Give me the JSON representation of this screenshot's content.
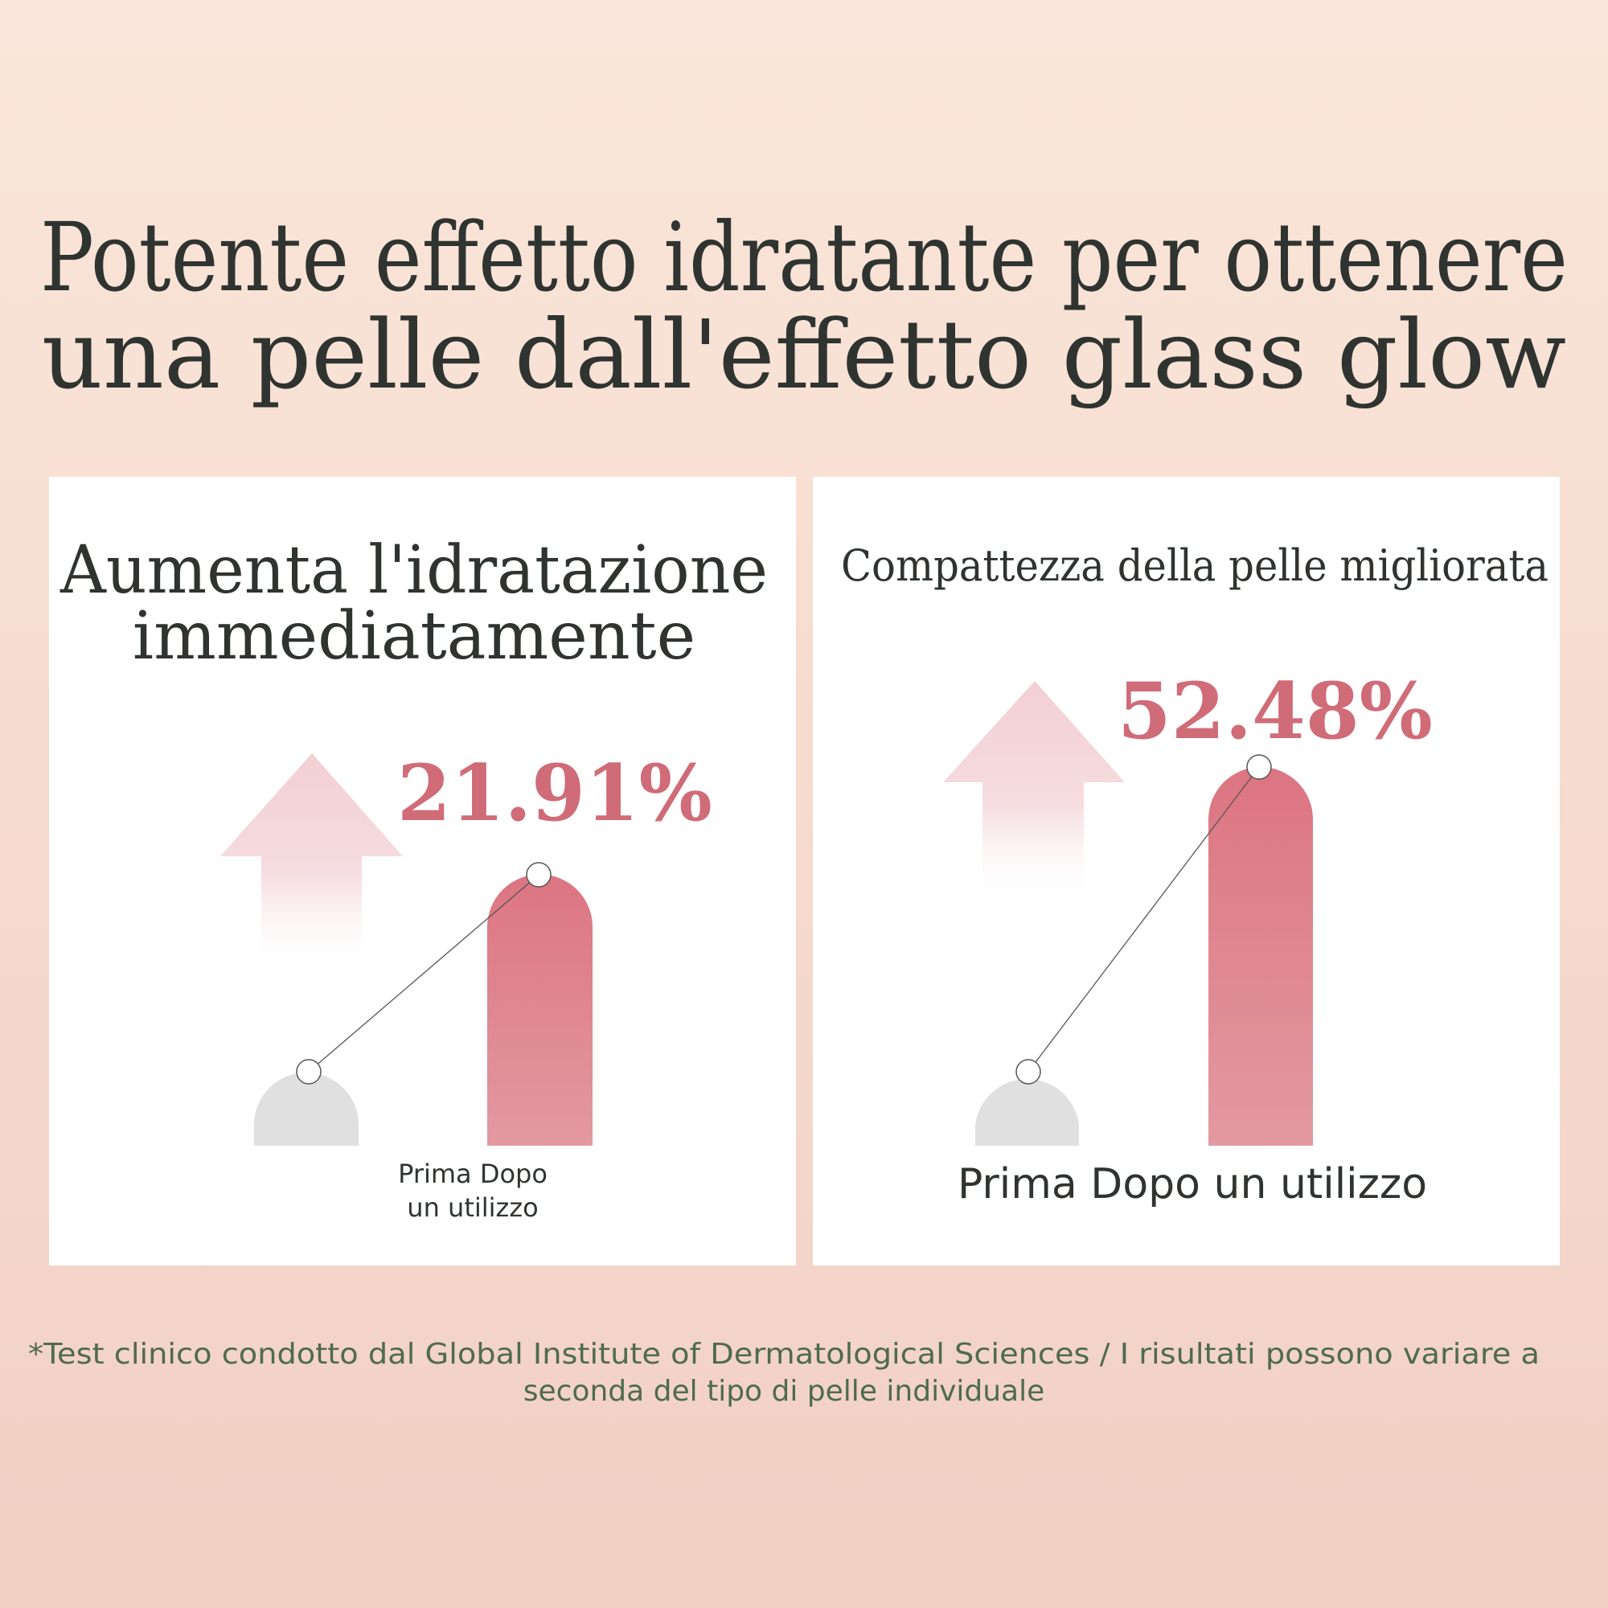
{
  "header": {
    "title": [
      "Potente effetto idratante per ottenere",
      "una pelle dall'effetto glass glow"
    ]
  },
  "panels": [
    {
      "title": [
        "Aumenta l'idratazione",
        "immediatamente"
      ],
      "value": "21.91%",
      "label": [
        "Prima Dopo",
        "un utilizzo"
      ]
    },
    {
      "title": [
        "Compattezza della pelle migliorata"
      ],
      "value": "52.48%",
      "label": [
        "Prima Dopo un utilizzo"
      ]
    }
  ],
  "footnote": [
    "*Test clinico condotto dal Global Institute of Dermatological Sciences / I risultati possono variare a",
    "seconda del tipo di pelle individuale"
  ]
}
